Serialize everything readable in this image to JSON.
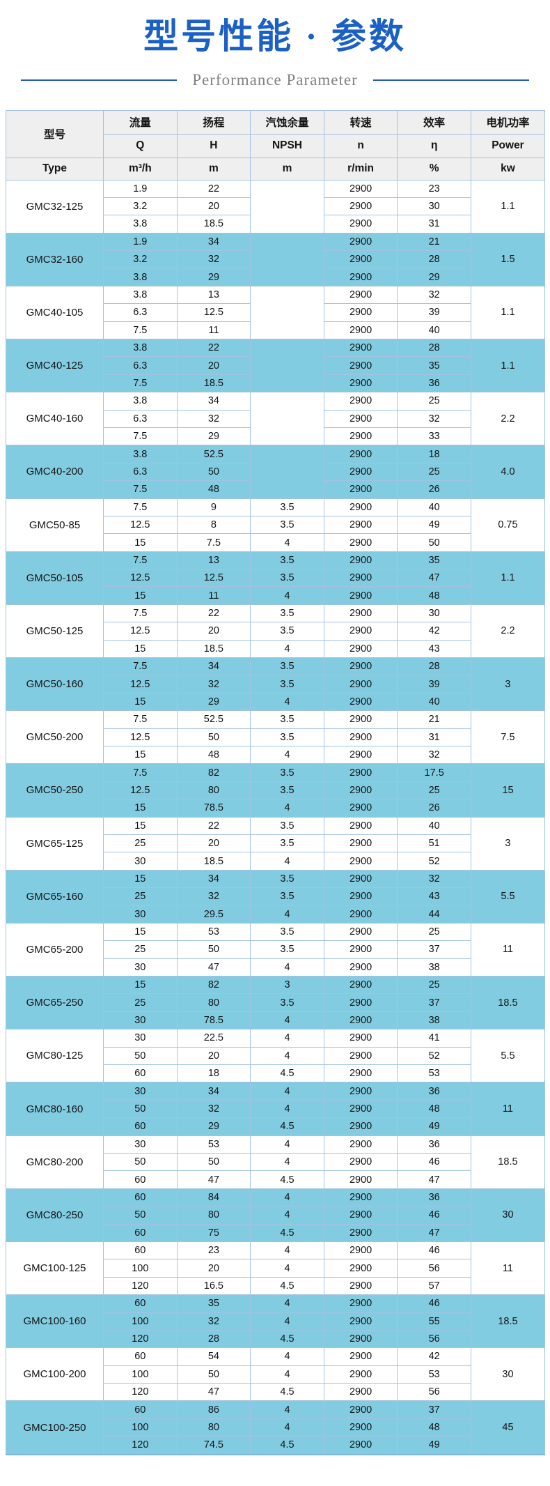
{
  "page": {
    "title": "型号性能 · 参数",
    "subtitle": "Performance Parameter"
  },
  "colors": {
    "title_blue": "#1b60c5",
    "divider_blue": "#2458cb",
    "subtitle_gray": "#828282",
    "header_bg": "#eeefee",
    "grid_line": "#a4c2e2",
    "row_highlight_blue": "#82cce1",
    "text": "#141414"
  },
  "table": {
    "header": {
      "model_cn": "型号",
      "type_label": "Type",
      "columns": [
        {
          "cn": "流量",
          "symbol": "Q",
          "unit": "m³/h"
        },
        {
          "cn": "扬程",
          "symbol": "H",
          "unit": "m"
        },
        {
          "cn": "汽蚀余量",
          "symbol": "NPSH",
          "unit": "m"
        },
        {
          "cn": "转速",
          "symbol": "n",
          "unit": "r/min"
        },
        {
          "cn": "效率",
          "symbol": "η",
          "unit": "%"
        },
        {
          "cn": "电机功率",
          "symbol": "Power",
          "unit": "kw"
        }
      ]
    },
    "groups": [
      {
        "model": "GMC32-125",
        "power": "1.1",
        "rows": [
          {
            "q": "1.9",
            "h": "22",
            "npsh": "",
            "n": "2900",
            "eta": "23"
          },
          {
            "q": "3.2",
            "h": "20",
            "npsh": "",
            "n": "2900",
            "eta": "30"
          },
          {
            "q": "3.8",
            "h": "18.5",
            "npsh": "",
            "n": "2900",
            "eta": "31"
          }
        ]
      },
      {
        "model": "GMC32-160",
        "power": "1.5",
        "rows": [
          {
            "q": "1.9",
            "h": "34",
            "npsh": "",
            "n": "2900",
            "eta": "21"
          },
          {
            "q": "3.2",
            "h": "32",
            "npsh": "",
            "n": "2900",
            "eta": "28"
          },
          {
            "q": "3.8",
            "h": "29",
            "npsh": "",
            "n": "2900",
            "eta": "29"
          }
        ]
      },
      {
        "model": "GMC40-105",
        "power": "1.1",
        "rows": [
          {
            "q": "3.8",
            "h": "13",
            "npsh": "",
            "n": "2900",
            "eta": "32"
          },
          {
            "q": "6.3",
            "h": "12.5",
            "npsh": "",
            "n": "2900",
            "eta": "39"
          },
          {
            "q": "7.5",
            "h": "11",
            "npsh": "",
            "n": "2900",
            "eta": "40"
          }
        ]
      },
      {
        "model": "GMC40-125",
        "power": "1.1",
        "rows": [
          {
            "q": "3.8",
            "h": "22",
            "npsh": "",
            "n": "2900",
            "eta": "28"
          },
          {
            "q": "6.3",
            "h": "20",
            "npsh": "",
            "n": "2900",
            "eta": "35"
          },
          {
            "q": "7.5",
            "h": "18.5",
            "npsh": "",
            "n": "2900",
            "eta": "36"
          }
        ]
      },
      {
        "model": "GMC40-160",
        "power": "2.2",
        "rows": [
          {
            "q": "3.8",
            "h": "34",
            "npsh": "",
            "n": "2900",
            "eta": "25"
          },
          {
            "q": "6.3",
            "h": "32",
            "npsh": "",
            "n": "2900",
            "eta": "32"
          },
          {
            "q": "7.5",
            "h": "29",
            "npsh": "",
            "n": "2900",
            "eta": "33"
          }
        ]
      },
      {
        "model": "GMC40-200",
        "power": "4.0",
        "rows": [
          {
            "q": "3.8",
            "h": "52.5",
            "npsh": "",
            "n": "2900",
            "eta": "18"
          },
          {
            "q": "6.3",
            "h": "50",
            "npsh": "",
            "n": "2900",
            "eta": "25"
          },
          {
            "q": "7.5",
            "h": "48",
            "npsh": "",
            "n": "2900",
            "eta": "26"
          }
        ]
      },
      {
        "model": "GMC50-85",
        "power": "0.75",
        "rows": [
          {
            "q": "7.5",
            "h": "9",
            "npsh": "3.5",
            "n": "2900",
            "eta": "40"
          },
          {
            "q": "12.5",
            "h": "8",
            "npsh": "3.5",
            "n": "2900",
            "eta": "49"
          },
          {
            "q": "15",
            "h": "7.5",
            "npsh": "4",
            "n": "2900",
            "eta": "50"
          }
        ]
      },
      {
        "model": "GMC50-105",
        "power": "1.1",
        "rows": [
          {
            "q": "7.5",
            "h": "13",
            "npsh": "3.5",
            "n": "2900",
            "eta": "35"
          },
          {
            "q": "12.5",
            "h": "12.5",
            "npsh": "3.5",
            "n": "2900",
            "eta": "47"
          },
          {
            "q": "15",
            "h": "11",
            "npsh": "4",
            "n": "2900",
            "eta": "48"
          }
        ]
      },
      {
        "model": "GMC50-125",
        "power": "2.2",
        "rows": [
          {
            "q": "7.5",
            "h": "22",
            "npsh": "3.5",
            "n": "2900",
            "eta": "30"
          },
          {
            "q": "12.5",
            "h": "20",
            "npsh": "3.5",
            "n": "2900",
            "eta": "42"
          },
          {
            "q": "15",
            "h": "18.5",
            "npsh": "4",
            "n": "2900",
            "eta": "43"
          }
        ]
      },
      {
        "model": "GMC50-160",
        "power": "3",
        "rows": [
          {
            "q": "7.5",
            "h": "34",
            "npsh": "3.5",
            "n": "2900",
            "eta": "28"
          },
          {
            "q": "12.5",
            "h": "32",
            "npsh": "3.5",
            "n": "2900",
            "eta": "39"
          },
          {
            "q": "15",
            "h": "29",
            "npsh": "4",
            "n": "2900",
            "eta": "40"
          }
        ]
      },
      {
        "model": "GMC50-200",
        "power": "7.5",
        "rows": [
          {
            "q": "7.5",
            "h": "52.5",
            "npsh": "3.5",
            "n": "2900",
            "eta": "21"
          },
          {
            "q": "12.5",
            "h": "50",
            "npsh": "3.5",
            "n": "2900",
            "eta": "31"
          },
          {
            "q": "15",
            "h": "48",
            "npsh": "4",
            "n": "2900",
            "eta": "32"
          }
        ]
      },
      {
        "model": "GMC50-250",
        "power": "15",
        "rows": [
          {
            "q": "7.5",
            "h": "82",
            "npsh": "3.5",
            "n": "2900",
            "eta": "17.5"
          },
          {
            "q": "12.5",
            "h": "80",
            "npsh": "3.5",
            "n": "2900",
            "eta": "25"
          },
          {
            "q": "15",
            "h": "78.5",
            "npsh": "4",
            "n": "2900",
            "eta": "26"
          }
        ]
      },
      {
        "model": "GMC65-125",
        "power": "3",
        "rows": [
          {
            "q": "15",
            "h": "22",
            "npsh": "3.5",
            "n": "2900",
            "eta": "40"
          },
          {
            "q": "25",
            "h": "20",
            "npsh": "3.5",
            "n": "2900",
            "eta": "51"
          },
          {
            "q": "30",
            "h": "18.5",
            "npsh": "4",
            "n": "2900",
            "eta": "52"
          }
        ]
      },
      {
        "model": "GMC65-160",
        "power": "5.5",
        "rows": [
          {
            "q": "15",
            "h": "34",
            "npsh": "3.5",
            "n": "2900",
            "eta": "32"
          },
          {
            "q": "25",
            "h": "32",
            "npsh": "3.5",
            "n": "2900",
            "eta": "43"
          },
          {
            "q": "30",
            "h": "29.5",
            "npsh": "4",
            "n": "2900",
            "eta": "44"
          }
        ]
      },
      {
        "model": "GMC65-200",
        "power": "11",
        "rows": [
          {
            "q": "15",
            "h": "53",
            "npsh": "3.5",
            "n": "2900",
            "eta": "25"
          },
          {
            "q": "25",
            "h": "50",
            "npsh": "3.5",
            "n": "2900",
            "eta": "37"
          },
          {
            "q": "30",
            "h": "47",
            "npsh": "4",
            "n": "2900",
            "eta": "38"
          }
        ]
      },
      {
        "model": "GMC65-250",
        "power": "18.5",
        "rows": [
          {
            "q": "15",
            "h": "82",
            "npsh": "3",
            "n": "2900",
            "eta": "25"
          },
          {
            "q": "25",
            "h": "80",
            "npsh": "3.5",
            "n": "2900",
            "eta": "37"
          },
          {
            "q": "30",
            "h": "78.5",
            "npsh": "4",
            "n": "2900",
            "eta": "38"
          }
        ]
      },
      {
        "model": "GMC80-125",
        "power": "5.5",
        "rows": [
          {
            "q": "30",
            "h": "22.5",
            "npsh": "4",
            "n": "2900",
            "eta": "41"
          },
          {
            "q": "50",
            "h": "20",
            "npsh": "4",
            "n": "2900",
            "eta": "52"
          },
          {
            "q": "60",
            "h": "18",
            "npsh": "4.5",
            "n": "2900",
            "eta": "53"
          }
        ]
      },
      {
        "model": "GMC80-160",
        "power": "11",
        "rows": [
          {
            "q": "30",
            "h": "34",
            "npsh": "4",
            "n": "2900",
            "eta": "36"
          },
          {
            "q": "50",
            "h": "32",
            "npsh": "4",
            "n": "2900",
            "eta": "48"
          },
          {
            "q": "60",
            "h": "29",
            "npsh": "4.5",
            "n": "2900",
            "eta": "49"
          }
        ]
      },
      {
        "model": "GMC80-200",
        "power": "18.5",
        "rows": [
          {
            "q": "30",
            "h": "53",
            "npsh": "4",
            "n": "2900",
            "eta": "36"
          },
          {
            "q": "50",
            "h": "50",
            "npsh": "4",
            "n": "2900",
            "eta": "46"
          },
          {
            "q": "60",
            "h": "47",
            "npsh": "4.5",
            "n": "2900",
            "eta": "47"
          }
        ]
      },
      {
        "model": "GMC80-250",
        "power": "30",
        "rows": [
          {
            "q": "60",
            "h": "84",
            "npsh": "4",
            "n": "2900",
            "eta": "36"
          },
          {
            "q": "50",
            "h": "80",
            "npsh": "4",
            "n": "2900",
            "eta": "46"
          },
          {
            "q": "60",
            "h": "75",
            "npsh": "4.5",
            "n": "2900",
            "eta": "47"
          }
        ]
      },
      {
        "model": "GMC100-125",
        "power": "11",
        "rows": [
          {
            "q": "60",
            "h": "23",
            "npsh": "4",
            "n": "2900",
            "eta": "46"
          },
          {
            "q": "100",
            "h": "20",
            "npsh": "4",
            "n": "2900",
            "eta": "56"
          },
          {
            "q": "120",
            "h": "16.5",
            "npsh": "4.5",
            "n": "2900",
            "eta": "57"
          }
        ]
      },
      {
        "model": "GMC100-160",
        "power": "18.5",
        "rows": [
          {
            "q": "60",
            "h": "35",
            "npsh": "4",
            "n": "2900",
            "eta": "46"
          },
          {
            "q": "100",
            "h": "32",
            "npsh": "4",
            "n": "2900",
            "eta": "55"
          },
          {
            "q": "120",
            "h": "28",
            "npsh": "4.5",
            "n": "2900",
            "eta": "56"
          }
        ]
      },
      {
        "model": "GMC100-200",
        "power": "30",
        "rows": [
          {
            "q": "60",
            "h": "54",
            "npsh": "4",
            "n": "2900",
            "eta": "42"
          },
          {
            "q": "100",
            "h": "50",
            "npsh": "4",
            "n": "2900",
            "eta": "53"
          },
          {
            "q": "120",
            "h": "47",
            "npsh": "4.5",
            "n": "2900",
            "eta": "56"
          }
        ]
      },
      {
        "model": "GMC100-250",
        "power": "45",
        "rows": [
          {
            "q": "60",
            "h": "86",
            "npsh": "4",
            "n": "2900",
            "eta": "37"
          },
          {
            "q": "100",
            "h": "80",
            "npsh": "4",
            "n": "2900",
            "eta": "48"
          },
          {
            "q": "120",
            "h": "74.5",
            "npsh": "4.5",
            "n": "2900",
            "eta": "49"
          }
        ]
      }
    ]
  }
}
